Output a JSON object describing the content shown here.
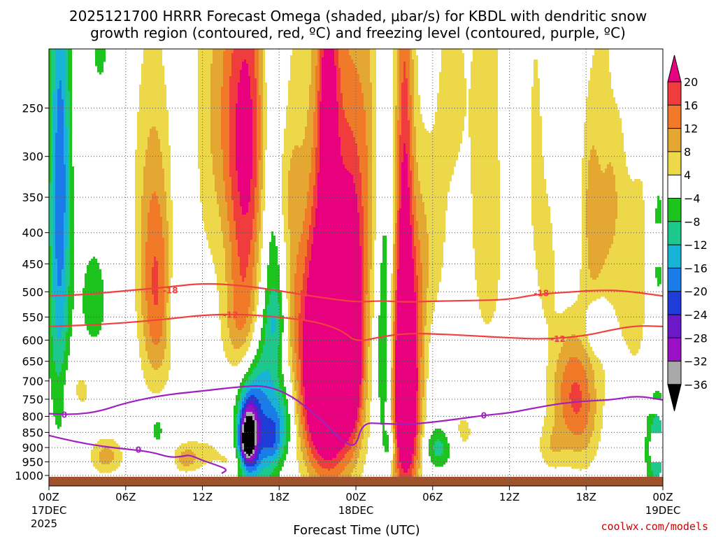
{
  "chart_data": {
    "type": "heatmap",
    "title_line1": "2025121700 HRRR Forecast Omega (shaded, μbar/s) for KBDL with dendritic snow",
    "title_line2": "growth region (contoured, red, ºC) and freezing level (contoured, purple, ºC)",
    "xlabel": "Forecast Time (UTC)",
    "credit": "coolwx.com/models",
    "y_axis": {
      "unit": "hPa",
      "range": [
        200,
        1000
      ],
      "ticks": [
        250,
        300,
        350,
        400,
        450,
        500,
        550,
        600,
        650,
        700,
        750,
        800,
        850,
        900,
        950,
        1000
      ]
    },
    "x_axis": {
      "unit": "forecast hour",
      "range": [
        0,
        48
      ],
      "ticks": [
        {
          "hour": 0,
          "label": "00Z",
          "sub1": "17DEC",
          "sub2": "2025"
        },
        {
          "hour": 6,
          "label": "06Z"
        },
        {
          "hour": 12,
          "label": "12Z"
        },
        {
          "hour": 18,
          "label": "18Z"
        },
        {
          "hour": 24,
          "label": "00Z",
          "sub1": "18DEC"
        },
        {
          "hour": 30,
          "label": "06Z"
        },
        {
          "hour": 36,
          "label": "12Z"
        },
        {
          "hour": 42,
          "label": "18Z"
        },
        {
          "hour": 48,
          "label": "00Z",
          "sub1": "19DEC"
        }
      ]
    },
    "colorbar": {
      "labels": [
        "20",
        "16",
        "12",
        "8",
        "4",
        "−4",
        "−8",
        "−12",
        "−16",
        "−20",
        "−24",
        "−28",
        "−32",
        "−36"
      ],
      "bins": [
        {
          "lo": 20,
          "hi": 99,
          "color": "#e8007f"
        },
        {
          "lo": 16,
          "hi": 20,
          "color": "#f03c3c"
        },
        {
          "lo": 12,
          "hi": 16,
          "color": "#f07a28"
        },
        {
          "lo": 8,
          "hi": 12,
          "color": "#e4a832"
        },
        {
          "lo": 4,
          "hi": 8,
          "color": "#ecd848"
        },
        {
          "lo": -4,
          "hi": 4,
          "color": "#ffffff"
        },
        {
          "lo": -8,
          "hi": -4,
          "color": "#1ec41e"
        },
        {
          "lo": -12,
          "hi": -8,
          "color": "#1cc88c"
        },
        {
          "lo": -16,
          "hi": -12,
          "color": "#18b4d8"
        },
        {
          "lo": -20,
          "hi": -16,
          "color": "#1a7ce8"
        },
        {
          "lo": -24,
          "hi": -20,
          "color": "#1e3cd8"
        },
        {
          "lo": -28,
          "hi": -24,
          "color": "#6a18c8"
        },
        {
          "lo": -32,
          "hi": -28,
          "color": "#9a10c4"
        },
        {
          "lo": -36,
          "hi": -32,
          "color": "#a8a8a8"
        },
        {
          "lo": -99,
          "hi": -36,
          "color": "#000000"
        }
      ]
    },
    "omega_features": [
      {
        "t": 0.8,
        "p": 420,
        "st": 0.6,
        "sp": 260,
        "a": -15
      },
      {
        "t": 1.0,
        "p": 300,
        "st": 0.5,
        "sp": 120,
        "a": -6
      },
      {
        "t": 3.5,
        "p": 520,
        "st": 0.9,
        "sp": 90,
        "a": -6
      },
      {
        "t": 4.5,
        "p": 930,
        "st": 0.9,
        "sp": 45,
        "a": 10
      },
      {
        "t": 2.5,
        "p": 720,
        "st": 1.0,
        "sp": 60,
        "a": 5
      },
      {
        "t": 4.0,
        "p": 200,
        "st": 0.6,
        "sp": 30,
        "a": -5
      },
      {
        "t": 8.4,
        "p": 520,
        "st": 0.9,
        "sp": 140,
        "a": 14
      },
      {
        "t": 8.0,
        "p": 330,
        "st": 1.1,
        "sp": 140,
        "a": 6
      },
      {
        "t": 10.5,
        "p": 340,
        "st": 0.6,
        "sp": 50,
        "a": -3
      },
      {
        "t": 10.0,
        "p": 530,
        "st": 0.5,
        "sp": 60,
        "a": -6
      },
      {
        "t": 8.5,
        "p": 840,
        "st": 0.5,
        "sp": 50,
        "a": -6
      },
      {
        "t": 12.5,
        "p": 250,
        "st": 1.0,
        "sp": 150,
        "a": 6
      },
      {
        "t": 12.0,
        "p": 920,
        "st": 1.5,
        "sp": 50,
        "a": 5
      },
      {
        "t": 10.7,
        "p": 940,
        "st": 0.6,
        "sp": 30,
        "a": 8
      },
      {
        "t": 14.0,
        "p": 250,
        "st": 0.8,
        "sp": 100,
        "a": 4
      },
      {
        "t": 14.4,
        "p": 950,
        "st": 0.7,
        "sp": 30,
        "a": 4
      },
      {
        "t": 15.4,
        "p": 350,
        "st": 1.1,
        "sp": 200,
        "a": 16
      },
      {
        "t": 16.0,
        "p": 250,
        "st": 1.5,
        "sp": 110,
        "a": 8
      },
      {
        "t": 15.0,
        "p": 570,
        "st": 1.0,
        "sp": 80,
        "a": 7
      },
      {
        "t": 17.5,
        "p": 380,
        "st": 0.8,
        "sp": 320,
        "a": -10
      },
      {
        "t": 16.2,
        "p": 820,
        "st": 1.0,
        "sp": 160,
        "a": -18
      },
      {
        "t": 15.6,
        "p": 860,
        "st": 0.5,
        "sp": 75,
        "a": -30
      },
      {
        "t": 15.4,
        "p": 880,
        "st": 0.35,
        "sp": 40,
        "a": -10
      },
      {
        "t": 17.5,
        "p": 870,
        "st": 0.5,
        "sp": 60,
        "a": -10
      },
      {
        "t": 18.4,
        "p": 820,
        "st": 0.6,
        "sp": 80,
        "a": -8
      },
      {
        "t": 18.2,
        "p": 340,
        "st": 0.5,
        "sp": 60,
        "a": 5
      },
      {
        "t": 17.8,
        "p": 560,
        "st": 0.6,
        "sp": 40,
        "a": -5
      },
      {
        "t": 19.0,
        "p": 330,
        "st": 0.6,
        "sp": 120,
        "a": 5
      },
      {
        "t": 19.0,
        "p": 540,
        "st": 0.6,
        "sp": 100,
        "a": 5
      },
      {
        "t": 21.6,
        "p": 680,
        "st": 1.3,
        "sp": 190,
        "a": 34
      },
      {
        "t": 22.5,
        "p": 520,
        "st": 1.7,
        "sp": 310,
        "a": 20
      },
      {
        "t": 21.8,
        "p": 250,
        "st": 0.5,
        "sp": 80,
        "a": 14
      },
      {
        "t": 23.7,
        "p": 600,
        "st": 0.5,
        "sp": 150,
        "a": 22
      },
      {
        "t": 24.8,
        "p": 300,
        "st": 0.7,
        "sp": 150,
        "a": 6
      },
      {
        "t": 26.3,
        "p": 620,
        "st": 0.55,
        "sp": 230,
        "a": -13
      },
      {
        "t": 26.7,
        "p": 890,
        "st": 0.3,
        "sp": 40,
        "a": -8
      },
      {
        "t": 27.3,
        "p": 720,
        "st": 0.7,
        "sp": 240,
        "a": 8
      },
      {
        "t": 28.0,
        "p": 730,
        "st": 0.75,
        "sp": 230,
        "a": 32
      },
      {
        "t": 27.8,
        "p": 300,
        "st": 0.5,
        "sp": 220,
        "a": 14
      },
      {
        "t": 29.2,
        "p": 450,
        "st": 0.5,
        "sp": 120,
        "a": 5
      },
      {
        "t": 30.3,
        "p": 400,
        "st": 0.8,
        "sp": 130,
        "a": 5
      },
      {
        "t": 31.6,
        "p": 230,
        "st": 0.8,
        "sp": 80,
        "a": 5
      },
      {
        "t": 30.5,
        "p": 900,
        "st": 0.8,
        "sp": 50,
        "a": -10
      },
      {
        "t": 32.3,
        "p": 850,
        "st": 0.9,
        "sp": 60,
        "a": 5
      },
      {
        "t": 34.3,
        "p": 330,
        "st": 1.0,
        "sp": 200,
        "a": 8
      },
      {
        "t": 36.3,
        "p": 300,
        "st": 0.7,
        "sp": 80,
        "a": -5
      },
      {
        "t": 38.0,
        "p": 300,
        "st": 0.7,
        "sp": 150,
        "a": 5
      },
      {
        "t": 39.0,
        "p": 450,
        "st": 0.5,
        "sp": 80,
        "a": 5
      },
      {
        "t": 40.5,
        "p": 230,
        "st": 0.5,
        "sp": 60,
        "a": -4
      },
      {
        "t": 39.3,
        "p": 900,
        "st": 0.8,
        "sp": 60,
        "a": 6
      },
      {
        "t": 40.7,
        "p": 720,
        "st": 1.2,
        "sp": 120,
        "a": 12
      },
      {
        "t": 41.8,
        "p": 800,
        "st": 1.0,
        "sp": 130,
        "a": 8
      },
      {
        "t": 42.5,
        "p": 450,
        "st": 0.7,
        "sp": 100,
        "a": 5
      },
      {
        "t": 42.3,
        "p": 330,
        "st": 0.5,
        "sp": 80,
        "a": 5
      },
      {
        "t": 43.0,
        "p": 570,
        "st": 0.7,
        "sp": 40,
        "a": -10
      },
      {
        "t": 44.0,
        "p": 320,
        "st": 1.0,
        "sp": 220,
        "a": 8
      },
      {
        "t": 44.3,
        "p": 200,
        "st": 0.5,
        "sp": 50,
        "a": -5
      },
      {
        "t": 45.6,
        "p": 260,
        "st": 0.5,
        "sp": 50,
        "a": -6
      },
      {
        "t": 46.0,
        "p": 450,
        "st": 0.8,
        "sp": 180,
        "a": 6
      },
      {
        "t": 47.5,
        "p": 900,
        "st": 0.6,
        "sp": 120,
        "a": -12
      },
      {
        "t": 47.6,
        "p": 420,
        "st": 0.5,
        "sp": 100,
        "a": -6
      }
    ],
    "contours": [
      {
        "label": "-18",
        "color": "#f04040",
        "label_points": [
          [
            9.5,
            497
          ],
          [
            38.5,
            502
          ]
        ],
        "points": [
          [
            0,
            508
          ],
          [
            3,
            505
          ],
          [
            6,
            498
          ],
          [
            9,
            492
          ],
          [
            12,
            484
          ],
          [
            15,
            488
          ],
          [
            18,
            498
          ],
          [
            21,
            510
          ],
          [
            24,
            520
          ],
          [
            26,
            517
          ],
          [
            28,
            520
          ],
          [
            30,
            518
          ],
          [
            33,
            517
          ],
          [
            36,
            515
          ],
          [
            38,
            505
          ],
          [
            41,
            500
          ],
          [
            43,
            497
          ],
          [
            45,
            498
          ],
          [
            48,
            508
          ]
        ]
      },
      {
        "label": "-12",
        "color": "#f04040",
        "label_points": [
          [
            14.2,
            545
          ],
          [
            39.8,
            597
          ]
        ],
        "points": [
          [
            0,
            570
          ],
          [
            3,
            567
          ],
          [
            6,
            562
          ],
          [
            9,
            555
          ],
          [
            12,
            546
          ],
          [
            15,
            544
          ],
          [
            18,
            550
          ],
          [
            21,
            560
          ],
          [
            23,
            580
          ],
          [
            24,
            605
          ],
          [
            26,
            592
          ],
          [
            28,
            585
          ],
          [
            30,
            586
          ],
          [
            33,
            590
          ],
          [
            36,
            595
          ],
          [
            39,
            598
          ],
          [
            42,
            590
          ],
          [
            44,
            577
          ],
          [
            46,
            568
          ],
          [
            48,
            570
          ]
        ]
      },
      {
        "label": "0",
        "color": "#a020c0",
        "label_points": [
          [
            1.2,
            795
          ],
          [
            7.0,
            907
          ],
          [
            34.0,
            797
          ]
        ],
        "points": [
          [
            0,
            792
          ],
          [
            2,
            795
          ],
          [
            4,
            785
          ],
          [
            6,
            760
          ],
          [
            9,
            738
          ],
          [
            12,
            727
          ],
          [
            15,
            715
          ],
          [
            17,
            712
          ],
          [
            19,
            740
          ],
          [
            21,
            800
          ],
          [
            22,
            840
          ],
          [
            23,
            880
          ],
          [
            24,
            900
          ],
          [
            24.5,
            820
          ],
          [
            26,
            822
          ],
          [
            28,
            825
          ],
          [
            30,
            818
          ],
          [
            32,
            808
          ],
          [
            34,
            797
          ],
          [
            36,
            790
          ],
          [
            38,
            775
          ],
          [
            40,
            762
          ],
          [
            42,
            755
          ],
          [
            44,
            752
          ],
          [
            46,
            740
          ],
          [
            48,
            752
          ]
        ]
      },
      {
        "label": "0",
        "color": "#a020c0",
        "points": [
          [
            0,
            860
          ],
          [
            2,
            880
          ],
          [
            4,
            895
          ],
          [
            6,
            905
          ],
          [
            8,
            915
          ],
          [
            9.5,
            935
          ],
          [
            10.5,
            930
          ],
          [
            11,
            925
          ],
          [
            12,
            945
          ],
          [
            13,
            960
          ],
          [
            14,
            978
          ],
          [
            13.5,
            992
          ]
        ]
      }
    ],
    "ground": {
      "color": "#a0522d",
      "top_hPa": 1005
    }
  }
}
